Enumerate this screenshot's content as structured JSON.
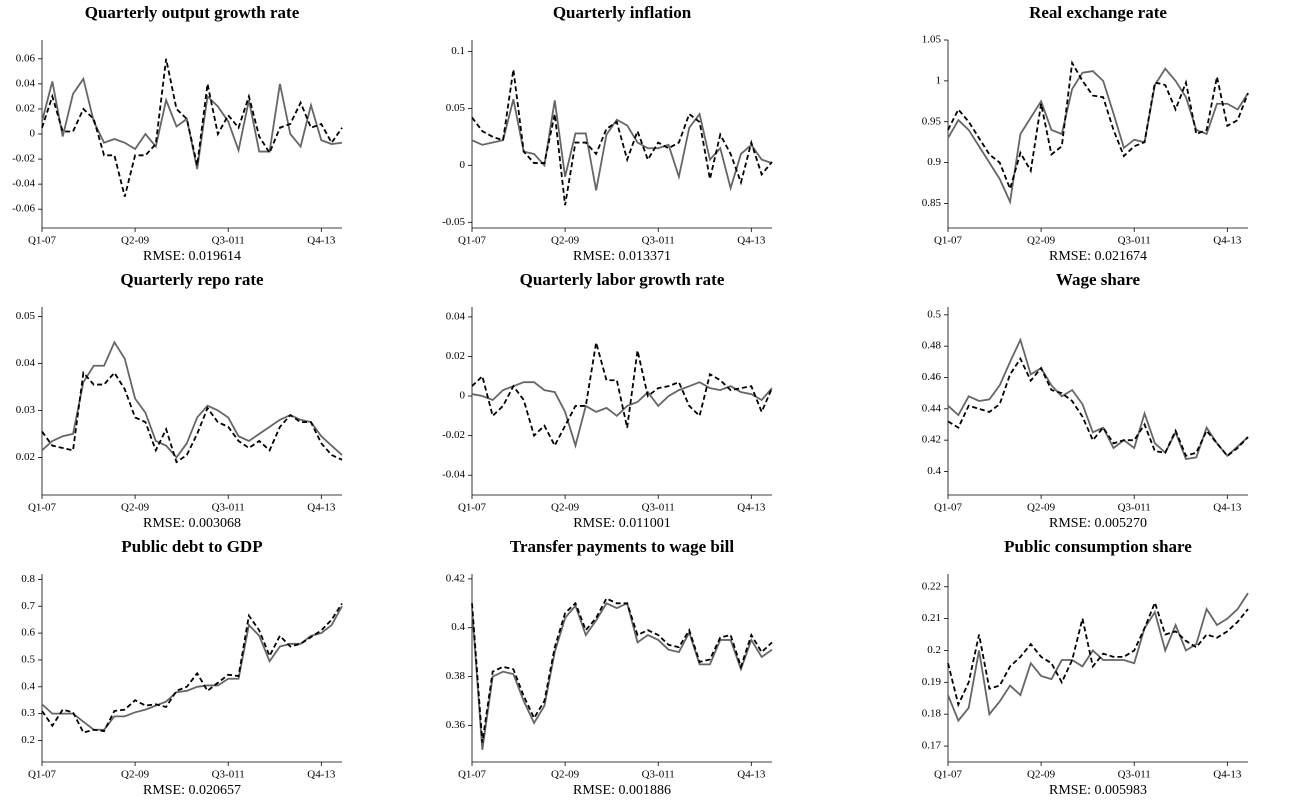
{
  "chart_data": [
    {
      "type": "line",
      "title": "Quarterly output growth rate",
      "xlabel": "RMSE: 0.019614",
      "categories": [
        "Q1-07",
        null,
        null,
        null,
        null,
        null,
        null,
        null,
        null,
        "Q2-09",
        null,
        null,
        null,
        null,
        null,
        null,
        null,
        null,
        "Q3-011",
        null,
        null,
        null,
        null,
        null,
        null,
        null,
        null,
        "Q4-13",
        null,
        null
      ],
      "ylim": [
        -0.075,
        0.075
      ],
      "yticks": [
        -0.06,
        -0.04,
        -0.02,
        0,
        0.02,
        0.04,
        0.06
      ],
      "series": [
        {
          "color": "#666666",
          "style": "solid",
          "values": [
            0.01,
            0.042,
            -0.002,
            0.032,
            0.044,
            0.01,
            -0.007,
            -0.004,
            -0.007,
            -0.012,
            0,
            -0.01,
            0.027,
            0.006,
            0.012,
            -0.028,
            0.03,
            0.022,
            0.01,
            -0.013,
            0.027,
            -0.014,
            -0.014,
            0.04,
            0,
            -0.01,
            0.023,
            -0.005,
            -0.008,
            -0.007
          ]
        },
        {
          "color": "#000000",
          "style": "dashed",
          "values": [
            0.005,
            0.03,
            0.002,
            0.002,
            0.02,
            0.012,
            -0.017,
            -0.017,
            -0.05,
            -0.017,
            -0.017,
            -0.008,
            0.06,
            0.02,
            0.012,
            -0.025,
            0.04,
            0,
            0.015,
            0.005,
            0.03,
            -0.002,
            -0.015,
            0.005,
            0.008,
            0.025,
            0.005,
            0.008,
            -0.007,
            0.005
          ]
        }
      ]
    },
    {
      "type": "line",
      "title": "Quarterly inflation",
      "xlabel": "RMSE: 0.013371",
      "categories": [
        "Q1-07",
        null,
        null,
        null,
        null,
        null,
        null,
        null,
        null,
        "Q2-09",
        null,
        null,
        null,
        null,
        null,
        null,
        null,
        null,
        "Q3-011",
        null,
        null,
        null,
        null,
        null,
        null,
        null,
        null,
        "Q4-13",
        null,
        null
      ],
      "ylim": [
        -0.055,
        0.11
      ],
      "yticks": [
        -0.05,
        0,
        0.05,
        0.1
      ],
      "series": [
        {
          "color": "#666666",
          "style": "solid",
          "values": [
            0.022,
            0.018,
            0.02,
            0.022,
            0.058,
            0.012,
            0.01,
            0,
            0.057,
            -0.01,
            0.028,
            0.028,
            -0.022,
            0.027,
            0.04,
            0.035,
            0.02,
            0.015,
            0.015,
            0.018,
            -0.01,
            0.033,
            0.045,
            0.005,
            0.015,
            -0.02,
            0.01,
            0.018,
            0.005,
            0.002
          ]
        },
        {
          "color": "#000000",
          "style": "dashed",
          "values": [
            0.042,
            0.03,
            0.025,
            0.022,
            0.084,
            0.012,
            0.002,
            0.002,
            0.045,
            -0.035,
            0.02,
            0.02,
            0.01,
            0.032,
            0.038,
            0.005,
            0.03,
            0.005,
            0.02,
            0.015,
            0.02,
            0.045,
            0.038,
            -0.012,
            0.027,
            0.01,
            -0.015,
            0.02,
            -0.008,
            0.003
          ]
        }
      ]
    },
    {
      "type": "line",
      "title": "Real exchange rate",
      "xlabel": "RMSE: 0.021674",
      "categories": [
        "Q1-07",
        null,
        null,
        null,
        null,
        null,
        null,
        null,
        null,
        "Q2-09",
        null,
        null,
        null,
        null,
        null,
        null,
        null,
        null,
        "Q3-011",
        null,
        null,
        null,
        null,
        null,
        null,
        null,
        null,
        "Q4-13",
        null,
        null
      ],
      "ylim": [
        0.82,
        1.05
      ],
      "yticks": [
        0.85,
        0.9,
        0.95,
        1,
        1.05
      ],
      "series": [
        {
          "color": "#666666",
          "style": "solid",
          "values": [
            0.93,
            0.952,
            0.94,
            0.92,
            0.9,
            0.88,
            0.852,
            0.935,
            0.955,
            0.975,
            0.94,
            0.935,
            0.99,
            1.01,
            1.012,
            1.0,
            0.96,
            0.918,
            0.928,
            0.925,
            0.995,
            1.015,
            1.0,
            0.98,
            0.94,
            0.935,
            0.972,
            0.972,
            0.965,
            0.985
          ]
        },
        {
          "color": "#000000",
          "style": "dashed",
          "values": [
            0.94,
            0.965,
            0.95,
            0.93,
            0.91,
            0.9,
            0.868,
            0.912,
            0.89,
            0.972,
            0.91,
            0.92,
            1.022,
            1.0,
            0.982,
            0.98,
            0.94,
            0.908,
            0.92,
            0.925,
            0.998,
            0.995,
            0.965,
            0.998,
            0.935,
            0.94,
            1.005,
            0.945,
            0.952,
            0.985
          ]
        }
      ]
    },
    {
      "type": "line",
      "title": "Quarterly repo rate",
      "xlabel": "RMSE: 0.003068",
      "categories": [
        "Q1-07",
        null,
        null,
        null,
        null,
        null,
        null,
        null,
        null,
        "Q2-09",
        null,
        null,
        null,
        null,
        null,
        null,
        null,
        null,
        "Q3-011",
        null,
        null,
        null,
        null,
        null,
        null,
        null,
        null,
        "Q4-13",
        null,
        null
      ],
      "ylim": [
        0.012,
        0.052
      ],
      "yticks": [
        0.02,
        0.03,
        0.04,
        0.05
      ],
      "series": [
        {
          "color": "#666666",
          "style": "solid",
          "values": [
            0.0215,
            0.0235,
            0.0245,
            0.025,
            0.036,
            0.0395,
            0.0395,
            0.0445,
            0.041,
            0.0325,
            0.0295,
            0.0235,
            0.0225,
            0.02,
            0.023,
            0.0285,
            0.031,
            0.03,
            0.0285,
            0.0245,
            0.0235,
            0.025,
            0.0265,
            0.028,
            0.029,
            0.028,
            0.0275,
            0.0245,
            0.0225,
            0.0205
          ]
        },
        {
          "color": "#000000",
          "style": "dashed",
          "values": [
            0.0255,
            0.0225,
            0.022,
            0.0215,
            0.038,
            0.0355,
            0.0355,
            0.038,
            0.0345,
            0.0285,
            0.0275,
            0.0215,
            0.026,
            0.019,
            0.0205,
            0.025,
            0.0305,
            0.0275,
            0.0265,
            0.0235,
            0.022,
            0.0235,
            0.0215,
            0.0265,
            0.029,
            0.0275,
            0.0275,
            0.023,
            0.0205,
            0.0195
          ]
        }
      ]
    },
    {
      "type": "line",
      "title": "Quarterly labor growth rate",
      "xlabel": "RMSE: 0.011001",
      "categories": [
        "Q1-07",
        null,
        null,
        null,
        null,
        null,
        null,
        null,
        null,
        "Q2-09",
        null,
        null,
        null,
        null,
        null,
        null,
        null,
        null,
        "Q3-011",
        null,
        null,
        null,
        null,
        null,
        null,
        null,
        null,
        "Q4-13",
        null,
        null
      ],
      "ylim": [
        -0.05,
        0.045
      ],
      "yticks": [
        -0.04,
        -0.02,
        0,
        0.02,
        0.04
      ],
      "series": [
        {
          "color": "#666666",
          "style": "solid",
          "values": [
            0.001,
            0,
            -0.002,
            0.003,
            0.005,
            0.007,
            0.007,
            0.003,
            0.002,
            -0.008,
            -0.025,
            -0.005,
            -0.008,
            -0.006,
            -0.01,
            -0.005,
            -0.003,
            0.002,
            -0.005,
            0,
            0.003,
            0.005,
            0.007,
            0.004,
            0.003,
            0.005,
            0.002,
            0.001,
            -0.002,
            0.004
          ]
        },
        {
          "color": "#000000",
          "style": "dashed",
          "values": [
            0.005,
            0.01,
            -0.01,
            -0.005,
            0.005,
            -0.002,
            -0.02,
            -0.015,
            -0.025,
            -0.015,
            -0.005,
            -0.005,
            0.027,
            0.008,
            0.008,
            -0.016,
            0.023,
            0,
            0.004,
            0.005,
            0.007,
            -0.005,
            -0.01,
            0.011,
            0.008,
            0.003,
            0.004,
            0.005,
            -0.008,
            0.004
          ]
        }
      ]
    },
    {
      "type": "line",
      "title": "Wage share",
      "xlabel": "RMSE: 0.005270",
      "categories": [
        "Q1-07",
        null,
        null,
        null,
        null,
        null,
        null,
        null,
        null,
        "Q2-09",
        null,
        null,
        null,
        null,
        null,
        null,
        null,
        null,
        "Q3-011",
        null,
        null,
        null,
        null,
        null,
        null,
        null,
        null,
        "Q4-13",
        null,
        null
      ],
      "ylim": [
        0.385,
        0.505
      ],
      "yticks": [
        0.4,
        0.42,
        0.44,
        0.46,
        0.48,
        0.5
      ],
      "series": [
        {
          "color": "#666666",
          "style": "solid",
          "values": [
            0.442,
            0.436,
            0.448,
            0.445,
            0.446,
            0.455,
            0.47,
            0.484,
            0.462,
            0.466,
            0.455,
            0.448,
            0.452,
            0.443,
            0.425,
            0.428,
            0.415,
            0.42,
            0.415,
            0.437,
            0.418,
            0.412,
            0.425,
            0.408,
            0.409,
            0.428,
            0.418,
            0.41,
            0.416,
            0.422
          ]
        },
        {
          "color": "#000000",
          "style": "dashed",
          "values": [
            0.432,
            0.428,
            0.442,
            0.44,
            0.438,
            0.443,
            0.462,
            0.472,
            0.458,
            0.466,
            0.452,
            0.45,
            0.445,
            0.435,
            0.42,
            0.428,
            0.418,
            0.42,
            0.42,
            0.43,
            0.413,
            0.412,
            0.426,
            0.41,
            0.412,
            0.426,
            0.418,
            0.41,
            0.415,
            0.422
          ]
        }
      ]
    },
    {
      "type": "line",
      "title": "Public debt to GDP",
      "xlabel": "RMSE: 0.020657",
      "categories": [
        "Q1-07",
        null,
        null,
        null,
        null,
        null,
        null,
        null,
        null,
        "Q2-09",
        null,
        null,
        null,
        null,
        null,
        null,
        null,
        null,
        "Q3-011",
        null,
        null,
        null,
        null,
        null,
        null,
        null,
        null,
        "Q4-13",
        null,
        null
      ],
      "ylim": [
        0.12,
        0.82
      ],
      "yticks": [
        0.2,
        0.3,
        0.4,
        0.5,
        0.6,
        0.7,
        0.8
      ],
      "series": [
        {
          "color": "#666666",
          "style": "solid",
          "values": [
            0.335,
            0.3,
            0.3,
            0.3,
            0.27,
            0.24,
            0.24,
            0.29,
            0.29,
            0.305,
            0.315,
            0.33,
            0.345,
            0.38,
            0.385,
            0.4,
            0.405,
            0.405,
            0.43,
            0.43,
            0.63,
            0.59,
            0.495,
            0.55,
            0.56,
            0.56,
            0.59,
            0.6,
            0.63,
            0.7
          ]
        },
        {
          "color": "#000000",
          "style": "dashed",
          "values": [
            0.31,
            0.255,
            0.315,
            0.305,
            0.23,
            0.24,
            0.235,
            0.31,
            0.315,
            0.35,
            0.33,
            0.335,
            0.325,
            0.385,
            0.4,
            0.45,
            0.385,
            0.415,
            0.445,
            0.44,
            0.665,
            0.61,
            0.515,
            0.59,
            0.55,
            0.56,
            0.585,
            0.61,
            0.65,
            0.71
          ]
        }
      ]
    },
    {
      "type": "line",
      "title": "Transfer payments to wage bill",
      "xlabel": "RMSE: 0.001886",
      "categories": [
        "Q1-07",
        null,
        null,
        null,
        null,
        null,
        null,
        null,
        null,
        "Q2-09",
        null,
        null,
        null,
        null,
        null,
        null,
        null,
        null,
        "Q3-011",
        null,
        null,
        null,
        null,
        null,
        null,
        null,
        null,
        "Q4-13",
        null,
        null
      ],
      "ylim": [
        0.345,
        0.422
      ],
      "yticks": [
        0.36,
        0.38,
        0.4,
        0.42
      ],
      "series": [
        {
          "color": "#666666",
          "style": "solid",
          "values": [
            0.408,
            0.35,
            0.38,
            0.382,
            0.381,
            0.37,
            0.361,
            0.368,
            0.39,
            0.404,
            0.409,
            0.397,
            0.403,
            0.41,
            0.408,
            0.41,
            0.394,
            0.397,
            0.395,
            0.391,
            0.39,
            0.398,
            0.385,
            0.385,
            0.395,
            0.395,
            0.383,
            0.395,
            0.388,
            0.391
          ]
        },
        {
          "color": "#000000",
          "style": "dashed",
          "values": [
            0.41,
            0.353,
            0.382,
            0.384,
            0.383,
            0.372,
            0.363,
            0.37,
            0.392,
            0.406,
            0.41,
            0.399,
            0.404,
            0.412,
            0.41,
            0.41,
            0.397,
            0.399,
            0.397,
            0.393,
            0.392,
            0.399,
            0.386,
            0.387,
            0.396,
            0.397,
            0.384,
            0.397,
            0.39,
            0.394
          ]
        }
      ]
    },
    {
      "type": "line",
      "title": "Public consumption share",
      "xlabel": "RMSE: 0.005983",
      "categories": [
        "Q1-07",
        null,
        null,
        null,
        null,
        null,
        null,
        null,
        null,
        "Q2-09",
        null,
        null,
        null,
        null,
        null,
        null,
        null,
        null,
        "Q3-011",
        null,
        null,
        null,
        null,
        null,
        null,
        null,
        null,
        "Q4-13",
        null,
        null
      ],
      "ylim": [
        0.165,
        0.224
      ],
      "yticks": [
        0.17,
        0.18,
        0.19,
        0.2,
        0.21,
        0.22
      ],
      "series": [
        {
          "color": "#666666",
          "style": "solid",
          "values": [
            0.186,
            0.178,
            0.182,
            0.2,
            0.18,
            0.184,
            0.189,
            0.186,
            0.196,
            0.192,
            0.191,
            0.197,
            0.197,
            0.195,
            0.2,
            0.197,
            0.197,
            0.197,
            0.196,
            0.207,
            0.212,
            0.2,
            0.208,
            0.2,
            0.202,
            0.213,
            0.208,
            0.21,
            0.213,
            0.218
          ]
        },
        {
          "color": "#000000",
          "style": "dashed",
          "values": [
            0.196,
            0.183,
            0.19,
            0.205,
            0.188,
            0.189,
            0.195,
            0.198,
            0.202,
            0.198,
            0.196,
            0.19,
            0.197,
            0.21,
            0.195,
            0.199,
            0.198,
            0.198,
            0.2,
            0.207,
            0.215,
            0.205,
            0.206,
            0.203,
            0.201,
            0.205,
            0.204,
            0.206,
            0.209,
            0.213
          ]
        }
      ]
    }
  ]
}
